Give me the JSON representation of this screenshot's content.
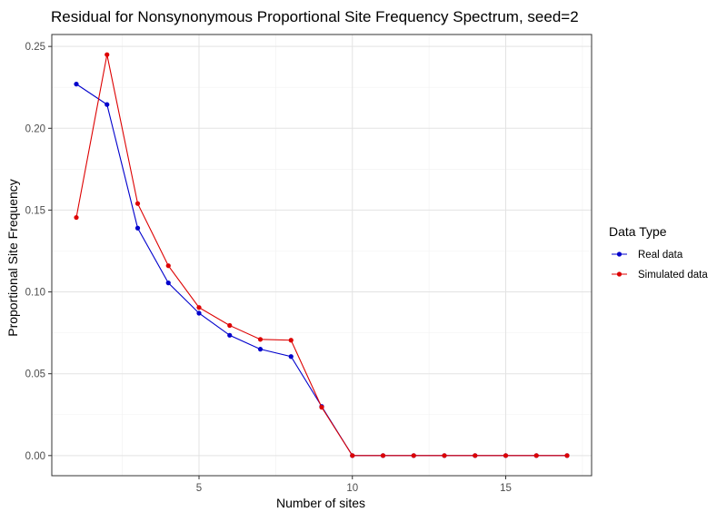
{
  "chart_data": {
    "type": "line",
    "title": "Residual for Nonsynonymous Proportional Site Frequency Spectrum, seed=2",
    "xlabel": "Number of sites",
    "ylabel": "Proportional Site Frequency",
    "xlim": [
      0.2,
      17.8
    ],
    "ylim": [
      -0.0123,
      0.2573
    ],
    "x_ticks": [
      5,
      10,
      15
    ],
    "x_tick_labels": [
      "5",
      "10",
      "15"
    ],
    "y_ticks": [
      0,
      0.05,
      0.1,
      0.15,
      0.2,
      0.25
    ],
    "y_tick_labels": [
      "0.00",
      "0.05",
      "0.10",
      "0.15",
      "0.20",
      "0.25"
    ],
    "grid": true,
    "legend": {
      "title": "Data Type",
      "placement": "right"
    },
    "x": [
      1,
      2,
      3,
      4,
      5,
      6,
      7,
      8,
      9,
      10,
      11,
      12,
      13,
      14,
      15,
      16,
      17
    ],
    "series": [
      {
        "name": "Real data",
        "color": "#0000cc",
        "values": [
          0.227,
          0.2145,
          0.139,
          0.1055,
          0.087,
          0.0735,
          0.065,
          0.0605,
          0.03,
          0,
          0,
          0,
          0,
          0,
          0,
          0,
          0
        ]
      },
      {
        "name": "Simulated data",
        "color": "#dd0000",
        "values": [
          0.1455,
          0.245,
          0.154,
          0.116,
          0.0905,
          0.0795,
          0.071,
          0.0705,
          0.0295,
          0,
          0,
          0,
          0,
          0,
          0,
          0,
          0
        ]
      }
    ]
  }
}
